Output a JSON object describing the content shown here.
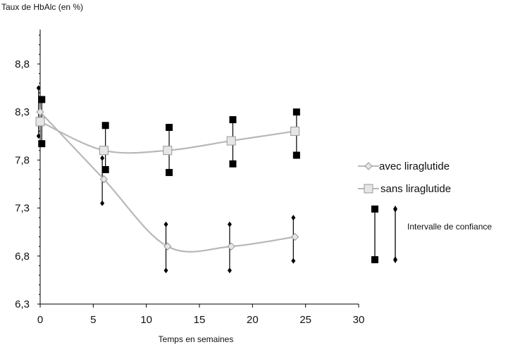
{
  "chart_data": {
    "type": "line",
    "ylabel": "Taux de HbAlc (en %)",
    "xlabel": "Temps en semaines",
    "xlim": [
      0,
      30
    ],
    "ylim": [
      6.3,
      9.1
    ],
    "x_ticks": [
      0,
      5,
      10,
      15,
      20,
      25,
      30
    ],
    "y_ticks": [
      6.3,
      6.8,
      7.3,
      7.8,
      8.3,
      8.8
    ],
    "x_tick_labels": [
      "0",
      "5",
      "10",
      "15",
      "20",
      "25",
      "30"
    ],
    "y_tick_labels": [
      "6,3",
      "6,8",
      "7,3",
      "7,8",
      "8,3",
      "8,8"
    ],
    "grid": false,
    "legend_position": "right",
    "series": [
      {
        "name": "avec liraglutide",
        "marker": "diamond",
        "color": "#b8b8b8",
        "x": [
          0,
          6,
          12,
          18,
          24
        ],
        "y": [
          8.3,
          7.6,
          6.9,
          6.9,
          7.0
        ],
        "ci_low": [
          8.05,
          7.35,
          6.65,
          6.65,
          6.75
        ],
        "ci_high": [
          8.55,
          7.82,
          7.13,
          7.13,
          7.2
        ]
      },
      {
        "name": "sans liraglutide",
        "marker": "square",
        "color": "#b8b8b8",
        "x": [
          0,
          6,
          12,
          18,
          24
        ],
        "y": [
          8.2,
          7.9,
          7.9,
          8.0,
          8.1
        ],
        "ci_low": [
          7.97,
          7.7,
          7.67,
          7.76,
          7.85
        ],
        "ci_high": [
          8.43,
          8.16,
          8.14,
          8.22,
          8.3
        ]
      }
    ],
    "confidence_interval_label": "Intervalle de confiance"
  }
}
